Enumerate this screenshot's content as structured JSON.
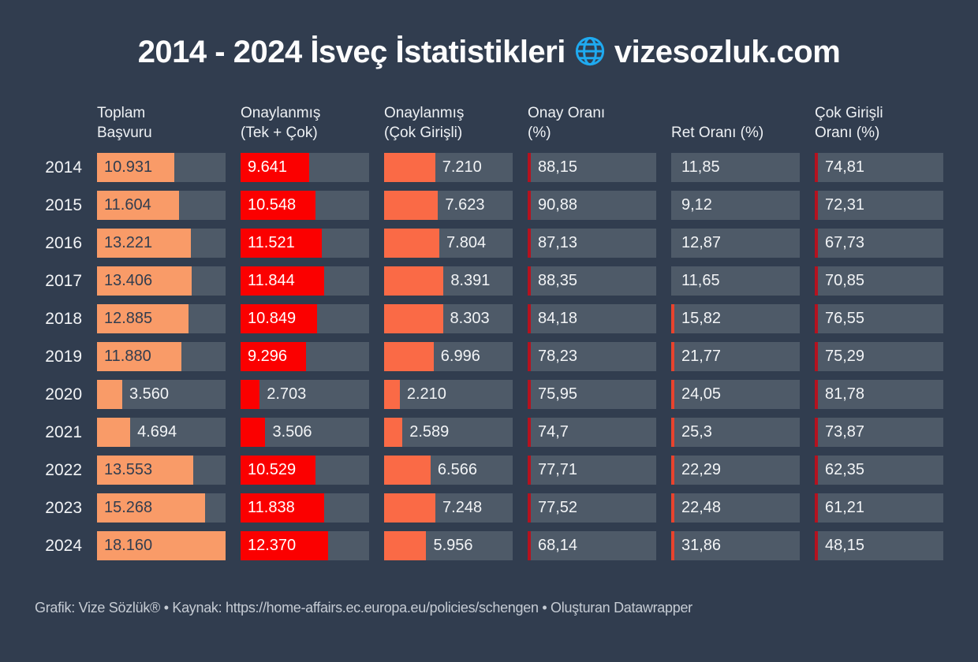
{
  "title": {
    "part1": "2014 - 2024 İsveç İstatistikleri",
    "part2": "vizesozluk.com"
  },
  "footer": {
    "text": "Grafik: Vize Sözlük® • Kaynak: https://home-affairs.ec.europa.eu/policies/schengen • Oluşturan Datawrapper"
  },
  "colors": {
    "background": "#313d4f",
    "cell_track": "#4e5a68",
    "bar_total": "#f99b68",
    "bar_approved": "#fb0000",
    "bar_multi": "#fa6a46",
    "tick_dark_red": "#b5121f",
    "tick_bright_red": "#e8432d",
    "text_light": "#f2f4f6",
    "text_dark": "#313d4f",
    "globe_blue": "#1faaf0",
    "footer_text": "#c6ccd4"
  },
  "chart_data": {
    "type": "table",
    "title": "2014 - 2024 İsveç İstatistikleri vizesozluk.com",
    "columns": [
      {
        "slug": "toplam-basvuru",
        "lines": "Toplam\nBaşvuru"
      },
      {
        "slug": "onaylanmis-tek-cok",
        "lines": "Onaylanmış\n(Tek + Çok)"
      },
      {
        "slug": "onaylanmis-cok-girisli",
        "lines": "Onaylanmış\n(Çok Girişli)"
      },
      {
        "slug": "onay-orani",
        "lines": "Onay Oranı\n(%)"
      },
      {
        "slug": "ret-orani",
        "lines": "Ret Oranı (%)"
      },
      {
        "slug": "cok-girisli-orani",
        "lines": "Çok Girişli\nOranı (%)"
      }
    ],
    "scale_max": 18160,
    "inside_threshold": 0.3,
    "tick_min_value": 15,
    "bar_columns": [
      {
        "key": 0,
        "color": "#f99b68",
        "inside_text": "#313d4f",
        "always_outside": false
      },
      {
        "key": 1,
        "color": "#fb0000",
        "inside_text": "#ffffff",
        "always_outside": false
      },
      {
        "key": 2,
        "color": "#fa6a46",
        "inside_text": "#ffffff",
        "always_outside": true
      }
    ],
    "pct_columns": [
      {
        "key": 3,
        "tick_color": "#b5121f"
      },
      {
        "key": 4,
        "tick_color": "#e8432d"
      },
      {
        "key": 5,
        "tick_color": "#b5121f"
      }
    ],
    "rows": [
      {
        "year": "2014",
        "cells": [
          {
            "v": 10931,
            "t": "10.931"
          },
          {
            "v": 9641,
            "t": "9.641"
          },
          {
            "v": 7210,
            "t": "7.210"
          },
          {
            "v": 88.15,
            "t": "88,15"
          },
          {
            "v": 11.85,
            "t": "11,85"
          },
          {
            "v": 74.81,
            "t": "74,81"
          }
        ]
      },
      {
        "year": "2015",
        "cells": [
          {
            "v": 11604,
            "t": "11.604"
          },
          {
            "v": 10548,
            "t": "10.548"
          },
          {
            "v": 7623,
            "t": "7.623"
          },
          {
            "v": 90.88,
            "t": "90,88"
          },
          {
            "v": 9.12,
            "t": "9,12"
          },
          {
            "v": 72.31,
            "t": "72,31"
          }
        ]
      },
      {
        "year": "2016",
        "cells": [
          {
            "v": 13221,
            "t": "13.221"
          },
          {
            "v": 11521,
            "t": "11.521"
          },
          {
            "v": 7804,
            "t": "7.804"
          },
          {
            "v": 87.13,
            "t": "87,13"
          },
          {
            "v": 12.87,
            "t": "12,87"
          },
          {
            "v": 67.73,
            "t": "67,73"
          }
        ]
      },
      {
        "year": "2017",
        "cells": [
          {
            "v": 13406,
            "t": "13.406"
          },
          {
            "v": 11844,
            "t": "11.844"
          },
          {
            "v": 8391,
            "t": "8.391"
          },
          {
            "v": 88.35,
            "t": "88,35"
          },
          {
            "v": 11.65,
            "t": "11,65"
          },
          {
            "v": 70.85,
            "t": "70,85"
          }
        ]
      },
      {
        "year": "2018",
        "cells": [
          {
            "v": 12885,
            "t": "12.885"
          },
          {
            "v": 10849,
            "t": "10.849"
          },
          {
            "v": 8303,
            "t": "8.303"
          },
          {
            "v": 84.18,
            "t": "84,18"
          },
          {
            "v": 15.82,
            "t": "15,82"
          },
          {
            "v": 76.55,
            "t": "76,55"
          }
        ]
      },
      {
        "year": "2019",
        "cells": [
          {
            "v": 11880,
            "t": "11.880"
          },
          {
            "v": 9296,
            "t": "9.296"
          },
          {
            "v": 6996,
            "t": "6.996"
          },
          {
            "v": 78.23,
            "t": "78,23"
          },
          {
            "v": 21.77,
            "t": "21,77"
          },
          {
            "v": 75.29,
            "t": "75,29"
          }
        ]
      },
      {
        "year": "2020",
        "cells": [
          {
            "v": 3560,
            "t": "3.560"
          },
          {
            "v": 2703,
            "t": "2.703"
          },
          {
            "v": 2210,
            "t": "2.210"
          },
          {
            "v": 75.95,
            "t": "75,95"
          },
          {
            "v": 24.05,
            "t": "24,05"
          },
          {
            "v": 81.78,
            "t": "81,78"
          }
        ]
      },
      {
        "year": "2021",
        "cells": [
          {
            "v": 4694,
            "t": "4.694"
          },
          {
            "v": 3506,
            "t": "3.506"
          },
          {
            "v": 2589,
            "t": "2.589"
          },
          {
            "v": 74.7,
            "t": "74,7"
          },
          {
            "v": 25.3,
            "t": "25,3"
          },
          {
            "v": 73.87,
            "t": "73,87"
          }
        ]
      },
      {
        "year": "2022",
        "cells": [
          {
            "v": 13553,
            "t": "13.553"
          },
          {
            "v": 10529,
            "t": "10.529"
          },
          {
            "v": 6566,
            "t": "6.566"
          },
          {
            "v": 77.71,
            "t": "77,71"
          },
          {
            "v": 22.29,
            "t": "22,29"
          },
          {
            "v": 62.35,
            "t": "62,35"
          }
        ]
      },
      {
        "year": "2023",
        "cells": [
          {
            "v": 15268,
            "t": "15.268"
          },
          {
            "v": 11838,
            "t": "11.838"
          },
          {
            "v": 7248,
            "t": "7.248"
          },
          {
            "v": 77.52,
            "t": "77,52"
          },
          {
            "v": 22.48,
            "t": "22,48"
          },
          {
            "v": 61.21,
            "t": "61,21"
          }
        ]
      },
      {
        "year": "2024",
        "cells": [
          {
            "v": 18160,
            "t": "18.160"
          },
          {
            "v": 12370,
            "t": "12.370"
          },
          {
            "v": 5956,
            "t": "5.956"
          },
          {
            "v": 68.14,
            "t": "68,14"
          },
          {
            "v": 31.86,
            "t": "31,86"
          },
          {
            "v": 48.15,
            "t": "48,15"
          }
        ]
      }
    ]
  }
}
